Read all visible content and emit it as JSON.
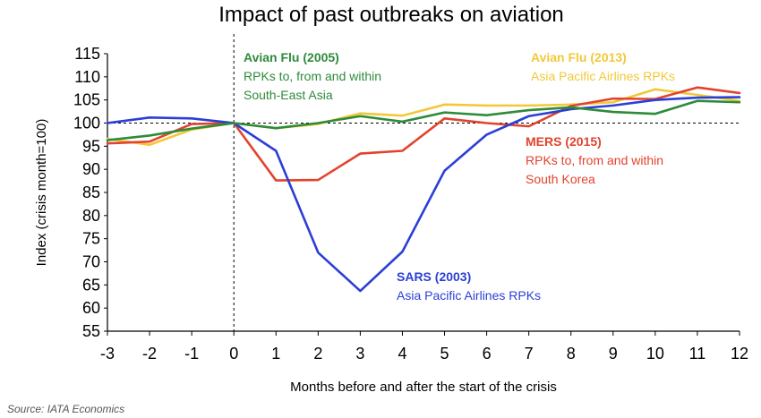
{
  "chart_data": {
    "type": "line",
    "title": "Impact of past outbreaks on aviation",
    "xlabel": "Months before and after the start of the crisis",
    "ylabel": "Index (crisis month=100)",
    "source": "Source: IATA Economics",
    "x": [
      -3,
      -2,
      -1,
      0,
      1,
      2,
      3,
      4,
      5,
      6,
      7,
      8,
      9,
      10,
      11,
      12
    ],
    "xlim": [
      -3,
      12
    ],
    "ylim": [
      55,
      115
    ],
    "yticks": [
      55,
      60,
      65,
      70,
      75,
      80,
      85,
      90,
      95,
      100,
      105,
      110,
      115
    ],
    "reference_line_y": 100,
    "crisis_line_x": 0,
    "series": [
      {
        "key": "sars",
        "color": "#2b3fd6",
        "values": [
          100,
          101.2,
          101,
          100,
          94,
          72,
          63.7,
          72.2,
          89.7,
          97.5,
          101.5,
          103,
          103.8,
          105,
          105.5,
          105.6
        ]
      },
      {
        "key": "mers",
        "color": "#e2432e",
        "values": [
          95.6,
          96,
          99.8,
          100,
          87.6,
          87.7,
          93.4,
          94,
          101,
          100,
          99.3,
          103.7,
          105.3,
          105.2,
          107.7,
          106.5
        ]
      },
      {
        "key": "avian2013",
        "color": "#f2c83a",
        "values": [
          96.6,
          95.3,
          98.6,
          100,
          98.9,
          99.8,
          102.1,
          101.6,
          104,
          103.8,
          103.8,
          104,
          104.5,
          107.3,
          106.1,
          104.8
        ]
      },
      {
        "key": "avian2005",
        "color": "#2e8b3a",
        "values": [
          96.3,
          97.3,
          98.8,
          100,
          98.9,
          100,
          101.5,
          100.3,
          102.3,
          101.7,
          102.8,
          103.4,
          102.4,
          102,
          104.8,
          104.5
        ]
      }
    ],
    "annotations": [
      {
        "key": "avian2005",
        "color": "#2e8b3a",
        "lines": [
          "Avian Flu (2005)",
          "RPKs to, from and within",
          "South-East Asia"
        ]
      },
      {
        "key": "avian2013",
        "color": "#f2c83a",
        "lines": [
          "Avian Flu (2013)",
          "Asia Pacific Airlines RPKs"
        ]
      },
      {
        "key": "mers",
        "color": "#e2432e",
        "lines": [
          "MERS (2015)",
          "RPKs to, from and within",
          "South Korea"
        ]
      },
      {
        "key": "sars",
        "color": "#2b3fd6",
        "lines": [
          "SARS (2003)",
          "Asia Pacific Airlines RPKs"
        ]
      }
    ]
  }
}
